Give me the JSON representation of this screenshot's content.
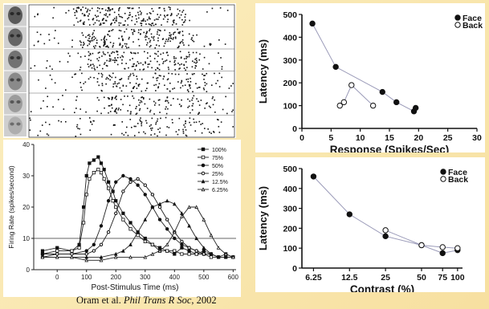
{
  "citation": {
    "authors": "Oram et al.",
    "journal": "Phil Trans R Soc",
    "year": ", 2002"
  },
  "chart_data": [
    {
      "type": "scatter",
      "panel": "raster",
      "rows": [
        {
          "contrast_pct": 100,
          "density": 1.0
        },
        {
          "contrast_pct": 75,
          "density": 0.9
        },
        {
          "contrast_pct": 50,
          "density": 0.8
        },
        {
          "contrast_pct": 25,
          "density": 0.6
        },
        {
          "contrast_pct": 12.5,
          "density": 0.45
        },
        {
          "contrast_pct": 6.25,
          "density": 0.3
        }
      ],
      "colors": {
        "dot": "#111111",
        "face": "#777777"
      }
    },
    {
      "type": "line",
      "panel": "firing-rate",
      "xlabel": "Post-Stimulus Time (ms)",
      "ylabel": "Firing Rate (spikes/second)",
      "xlim": [
        -80,
        610
      ],
      "ylim": [
        0,
        40
      ],
      "xticks": [
        0,
        100,
        200,
        300,
        400,
        500,
        600
      ],
      "yticks": [
        0,
        10,
        20,
        30,
        40
      ],
      "baseline": 10,
      "legend_position": "top-right",
      "series": [
        {
          "name": "100%",
          "marker": "filled-square",
          "x": [
            -50,
            0,
            50,
            75,
            90,
            100,
            110,
            125,
            140,
            150,
            160,
            175,
            190,
            200,
            225,
            250,
            275,
            300,
            325,
            350,
            375,
            400,
            425,
            450,
            475,
            500,
            525,
            550,
            575,
            600
          ],
          "y": [
            6,
            7,
            6,
            8,
            20,
            30,
            34,
            35,
            36,
            34,
            32,
            28,
            25,
            22,
            18,
            15,
            12,
            10,
            8,
            7,
            6,
            5,
            7,
            6,
            5,
            6,
            5,
            4,
            5,
            4
          ]
        },
        {
          "name": "75%",
          "marker": "open-square",
          "x": [
            -50,
            0,
            50,
            75,
            90,
            100,
            110,
            125,
            140,
            150,
            160,
            175,
            190,
            200,
            225,
            250,
            275,
            300,
            325,
            350,
            375,
            400,
            425,
            450,
            475,
            500,
            525,
            550,
            575,
            600
          ],
          "y": [
            5,
            6,
            6,
            7,
            15,
            24,
            29,
            31,
            32,
            31,
            29,
            26,
            22,
            20,
            16,
            13,
            11,
            9,
            8,
            6,
            6,
            6,
            5,
            5,
            5,
            5,
            4,
            4,
            4,
            4
          ]
        },
        {
          "name": "50%",
          "marker": "filled-circle",
          "x": [
            -50,
            0,
            50,
            100,
            125,
            150,
            175,
            200,
            225,
            250,
            275,
            300,
            325,
            350,
            375,
            400,
            425,
            450,
            475,
            500,
            525,
            550,
            575,
            600
          ],
          "y": [
            5,
            5,
            5,
            6,
            8,
            14,
            22,
            28,
            30,
            29,
            27,
            24,
            20,
            16,
            13,
            10,
            8,
            7,
            6,
            5,
            5,
            4,
            4,
            4
          ]
        },
        {
          "name": "25%",
          "marker": "open-circle",
          "x": [
            -50,
            0,
            50,
            100,
            125,
            150,
            175,
            200,
            225,
            250,
            275,
            300,
            325,
            350,
            375,
            400,
            425,
            450,
            475,
            500,
            525,
            550,
            575,
            600
          ],
          "y": [
            4,
            5,
            5,
            5,
            6,
            8,
            12,
            18,
            25,
            28,
            29,
            27,
            24,
            20,
            16,
            12,
            9,
            7,
            6,
            5,
            5,
            4,
            4,
            4
          ]
        },
        {
          "name": "12.5%",
          "marker": "filled-triangle",
          "x": [
            -50,
            0,
            50,
            100,
            150,
            200,
            225,
            250,
            275,
            300,
            325,
            350,
            375,
            400,
            425,
            450,
            475,
            500,
            525,
            550,
            575,
            600
          ],
          "y": [
            4,
            4,
            4,
            4,
            4,
            5,
            6,
            8,
            12,
            16,
            20,
            21,
            22,
            21,
            18,
            14,
            10,
            7,
            5,
            4,
            4,
            4
          ]
        },
        {
          "name": "6.25%",
          "marker": "open-triangle",
          "x": [
            -50,
            0,
            50,
            100,
            150,
            200,
            250,
            300,
            325,
            350,
            375,
            400,
            425,
            450,
            475,
            500,
            525,
            550,
            575,
            600
          ],
          "y": [
            4,
            4,
            4,
            3,
            3,
            4,
            4,
            4,
            5,
            6,
            8,
            12,
            17,
            20,
            20,
            16,
            11,
            7,
            5,
            4
          ]
        }
      ]
    },
    {
      "type": "scatter",
      "panel": "latency-vs-response",
      "xlabel": "Response (Spikes/Sec)",
      "ylabel": "Latency (ms)",
      "xlim": [
        0,
        30
      ],
      "ylim": [
        0,
        500
      ],
      "xticks": [
        0,
        5,
        10,
        15,
        20,
        25,
        30
      ],
      "yticks": [
        0,
        100,
        200,
        300,
        400,
        500
      ],
      "legend_position": "top-right",
      "series": [
        {
          "name": "Face",
          "marker": "filled-circle",
          "x": [
            1.8,
            5.8,
            13.8,
            16.2,
            19.2,
            19.5
          ],
          "y": [
            460,
            270,
            160,
            115,
            75,
            90
          ]
        },
        {
          "name": "Back",
          "marker": "open-circle",
          "x": [
            6.5,
            7.2,
            8.5,
            12.2
          ],
          "y": [
            100,
            115,
            190,
            100
          ]
        }
      ]
    },
    {
      "type": "scatter",
      "panel": "latency-vs-contrast",
      "xlabel": "Contrast (%)",
      "ylabel": "Latency (ms)",
      "xscale": "log",
      "xlim": [
        5,
        110
      ],
      "ylim": [
        0,
        500
      ],
      "xticks": [
        6.25,
        12.5,
        25,
        50,
        75,
        100
      ],
      "xticklabels": [
        "6.25",
        "12.5",
        "25",
        "50",
        "75",
        "100"
      ],
      "yticks": [
        0,
        100,
        200,
        300,
        400,
        500
      ],
      "legend_position": "top-right",
      "series": [
        {
          "name": "Face",
          "marker": "filled-circle",
          "x": [
            6.25,
            12.5,
            25,
            50,
            75,
            100
          ],
          "y": [
            460,
            270,
            160,
            115,
            75,
            90
          ]
        },
        {
          "name": "Back",
          "marker": "open-circle",
          "x": [
            25,
            50,
            75,
            100
          ],
          "y": [
            190,
            115,
            105,
            100
          ]
        }
      ]
    }
  ]
}
